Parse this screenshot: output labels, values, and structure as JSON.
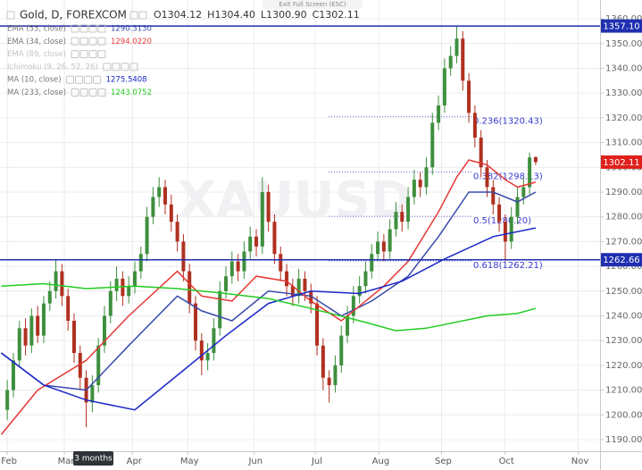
{
  "title": "Gold, D, FOREXCOM",
  "ohlc": [
    {
      "key": "O",
      "value": "1304.12"
    },
    {
      "key": "H",
      "value": "1304.40"
    },
    {
      "key": "L",
      "value": "1300.90"
    },
    {
      "key": "C",
      "value": "1302.11"
    }
  ],
  "tooltip": "Exit Full Screen (ESC)",
  "chart_data": {
    "type": "candlestick",
    "watermark": "XAUUSD",
    "range_label": "3 months",
    "up_color": "#3e8f3e",
    "down_color": "#b03020",
    "grid": true,
    "xlim": [
      -1.2,
      97.6
    ],
    "xticks": [
      {
        "value": 0,
        "label": "Feb"
      },
      {
        "value": 9.4,
        "label": "Mar"
      },
      {
        "value": 20.6,
        "label": "Apr"
      },
      {
        "value": 29.7,
        "label": "May"
      },
      {
        "value": 40.6,
        "label": "Jun"
      },
      {
        "value": 50.7,
        "label": "Jul"
      },
      {
        "value": 61.2,
        "label": "Aug"
      },
      {
        "value": 71.5,
        "label": "Sep"
      },
      {
        "value": 81.9,
        "label": "Oct"
      },
      {
        "value": 94,
        "label": "Nov"
      }
    ],
    "ylim": [
      1185.3,
      1367.6
    ],
    "yticks": [
      {
        "value": 1190,
        "label": "1190.00"
      },
      {
        "value": 1200,
        "label": "1200.00"
      },
      {
        "value": 1210,
        "label": "1210.00"
      },
      {
        "value": 1220,
        "label": "1220.00"
      },
      {
        "value": 1230,
        "label": "1230.00"
      },
      {
        "value": 1240,
        "label": "1240.00"
      },
      {
        "value": 1250,
        "label": "1250.00"
      },
      {
        "value": 1260,
        "label": "1260.00"
      },
      {
        "value": 1270,
        "label": "1270.00"
      },
      {
        "value": 1280,
        "label": "1280.00"
      },
      {
        "value": 1290,
        "label": "1290.00"
      },
      {
        "value": 1300,
        "label": "1300.00"
      },
      {
        "value": 1310,
        "label": "1310.00"
      },
      {
        "value": 1320,
        "label": "1320.00"
      },
      {
        "value": 1330,
        "label": "1330.00"
      },
      {
        "value": 1340,
        "label": "1340.00"
      },
      {
        "value": 1350,
        "label": "1350.00"
      },
      {
        "value": 1360,
        "label": "1360.00"
      }
    ],
    "candles": [
      [
        1202,
        1214,
        1198,
        1210
      ],
      [
        1210,
        1225,
        1207,
        1222
      ],
      [
        1222,
        1238,
        1219,
        1235
      ],
      [
        1235,
        1239,
        1224,
        1228
      ],
      [
        1228,
        1243,
        1225,
        1240
      ],
      [
        1240,
        1244,
        1229,
        1232
      ],
      [
        1232,
        1248,
        1229,
        1245
      ],
      [
        1245,
        1254,
        1242,
        1250
      ],
      [
        1250,
        1263,
        1247,
        1258
      ],
      [
        1258,
        1261,
        1244,
        1248
      ],
      [
        1248,
        1251,
        1234,
        1238
      ],
      [
        1238,
        1241,
        1221,
        1225
      ],
      [
        1225,
        1228,
        1210,
        1215
      ],
      [
        1215,
        1218,
        1195,
        1205
      ],
      [
        1205,
        1216,
        1201,
        1212
      ],
      [
        1212,
        1231,
        1209,
        1228
      ],
      [
        1228,
        1244,
        1225,
        1240
      ],
      [
        1240,
        1254,
        1237,
        1250
      ],
      [
        1250,
        1260,
        1246,
        1255
      ],
      [
        1255,
        1258,
        1244,
        1248
      ],
      [
        1248,
        1256,
        1245,
        1252
      ],
      [
        1252,
        1262,
        1249,
        1258
      ],
      [
        1258,
        1268,
        1255,
        1265
      ],
      [
        1265,
        1284,
        1262,
        1280
      ],
      [
        1280,
        1292,
        1277,
        1288
      ],
      [
        1288,
        1296,
        1284,
        1292
      ],
      [
        1292,
        1295,
        1281,
        1285
      ],
      [
        1285,
        1289,
        1274,
        1278
      ],
      [
        1278,
        1281,
        1266,
        1270
      ],
      [
        1270,
        1273,
        1254,
        1258
      ],
      [
        1258,
        1261,
        1241,
        1245
      ],
      [
        1245,
        1248,
        1226,
        1230
      ],
      [
        1230,
        1233,
        1216,
        1222
      ],
      [
        1222,
        1229,
        1218,
        1225
      ],
      [
        1225,
        1239,
        1222,
        1235
      ],
      [
        1235,
        1254,
        1232,
        1250
      ],
      [
        1250,
        1260,
        1247,
        1256
      ],
      [
        1256,
        1266,
        1253,
        1262
      ],
      [
        1262,
        1265,
        1254,
        1258
      ],
      [
        1258,
        1270,
        1255,
        1266
      ],
      [
        1266,
        1276,
        1263,
        1272
      ],
      [
        1272,
        1275,
        1264,
        1268
      ],
      [
        1268,
        1296,
        1265,
        1290
      ],
      [
        1290,
        1293,
        1274,
        1278
      ],
      [
        1278,
        1281,
        1261,
        1265
      ],
      [
        1265,
        1268,
        1254,
        1258
      ],
      [
        1258,
        1261,
        1248,
        1252
      ],
      [
        1252,
        1255,
        1244,
        1248
      ],
      [
        1248,
        1259,
        1245,
        1255
      ],
      [
        1255,
        1258,
        1246,
        1250
      ],
      [
        1250,
        1253,
        1241,
        1245
      ],
      [
        1245,
        1248,
        1224,
        1228
      ],
      [
        1228,
        1231,
        1210,
        1215
      ],
      [
        1215,
        1218,
        1205,
        1212
      ],
      [
        1212,
        1224,
        1209,
        1220
      ],
      [
        1220,
        1236,
        1217,
        1232
      ],
      [
        1232,
        1244,
        1229,
        1240
      ],
      [
        1240,
        1252,
        1237,
        1248
      ],
      [
        1248,
        1256,
        1245,
        1252
      ],
      [
        1252,
        1262,
        1249,
        1258
      ],
      [
        1258,
        1269,
        1255,
        1265
      ],
      [
        1265,
        1274,
        1262,
        1270
      ],
      [
        1270,
        1273,
        1262,
        1266
      ],
      [
        1266,
        1279,
        1263,
        1275
      ],
      [
        1275,
        1286,
        1272,
        1282
      ],
      [
        1282,
        1285,
        1274,
        1278
      ],
      [
        1278,
        1292,
        1275,
        1288
      ],
      [
        1288,
        1299,
        1285,
        1295
      ],
      [
        1295,
        1298,
        1288,
        1292
      ],
      [
        1292,
        1304,
        1289,
        1300
      ],
      [
        1300,
        1322,
        1297,
        1318
      ],
      [
        1318,
        1329,
        1315,
        1325
      ],
      [
        1325,
        1344,
        1322,
        1340
      ],
      [
        1340,
        1349,
        1337,
        1345
      ],
      [
        1345,
        1357,
        1342,
        1352
      ],
      [
        1352,
        1355,
        1331,
        1335
      ],
      [
        1335,
        1338,
        1318,
        1322
      ],
      [
        1322,
        1325,
        1308,
        1312
      ],
      [
        1312,
        1315,
        1296,
        1300
      ],
      [
        1300,
        1303,
        1288,
        1292
      ],
      [
        1292,
        1295,
        1281,
        1285
      ],
      [
        1285,
        1288,
        1274,
        1278
      ],
      [
        1278,
        1281,
        1262,
        1270
      ],
      [
        1270,
        1284,
        1267,
        1280
      ],
      [
        1280,
        1292,
        1277,
        1288
      ],
      [
        1288,
        1296,
        1285,
        1292
      ],
      [
        1292,
        1306,
        1289,
        1304
      ],
      [
        1304.12,
        1304.4,
        1300.9,
        1302.11
      ]
    ],
    "series": [
      {
        "name": "EMA (55, close)",
        "color": "#3949ab",
        "last_label": "1290.3130",
        "x": [
          -1,
          6,
          13,
          20,
          28,
          32,
          37,
          43,
          50,
          55,
          60,
          66,
          71,
          76,
          80,
          84,
          87
        ],
        "values": [
          1225,
          1212,
          1210,
          1228,
          1248,
          1242,
          1238,
          1250,
          1248,
          1240,
          1246,
          1256,
          1272,
          1290,
          1290,
          1286,
          1290
        ]
      },
      {
        "name": "EMA (34, close)",
        "color": "#e53935",
        "last_label": "1294.0220",
        "x": [
          -1,
          5,
          13,
          20,
          28,
          32,
          37,
          41,
          46,
          50,
          55,
          58,
          62,
          66,
          71,
          74,
          76,
          79,
          82,
          84,
          87
        ],
        "values": [
          1192,
          1210,
          1222,
          1240,
          1258,
          1248,
          1246,
          1256,
          1254,
          1246,
          1238,
          1244,
          1252,
          1262,
          1282,
          1296,
          1303,
          1301,
          1295,
          1292,
          1294
        ]
      },
      {
        "name": "MA (10, close)",
        "color": "#1a27c9",
        "last_label": "1275.5408",
        "x": [
          -1,
          6,
          13,
          21,
          28,
          36,
          43,
          50,
          58,
          65,
          72,
          80,
          87
        ],
        "values": [
          1225,
          1212,
          1206,
          1202,
          1216,
          1232,
          1245,
          1250,
          1249,
          1254,
          1263,
          1272,
          1275.5
        ]
      },
      {
        "name": "MA (233, close)",
        "color": "#22cc22",
        "last_label": "1243.0752",
        "x": [
          -1,
          6,
          13,
          21,
          28,
          36,
          43,
          50,
          58,
          64,
          69,
          73,
          79,
          84,
          87
        ],
        "values": [
          1252,
          1253,
          1251,
          1252,
          1251,
          1249,
          1247,
          1243,
          1238,
          1234,
          1235,
          1237,
          1240,
          1241,
          1243
        ]
      }
    ],
    "legend_hidden": [
      "EMA (89, close)",
      "Ichimoku (9, 26, 52, 26)"
    ],
    "price_tags": [
      {
        "value": 1357.1,
        "label": "1357.10",
        "color": "#1f2fb0",
        "line": true
      },
      {
        "value": 1302.11,
        "label": "1302.11",
        "color": "#e0201b",
        "line": false
      },
      {
        "value": 1262.66,
        "label": "1262.66",
        "color": "#1f2fb0",
        "line": true
      }
    ],
    "fib_levels": [
      {
        "value": 1320.43,
        "label": "0.236(1320.43)"
      },
      {
        "value": 1298.13,
        "label": "0.382(1298.13)"
      },
      {
        "value": 1280.2,
        "label": "0.5(1280.20)"
      },
      {
        "value": 1262.21,
        "label": "0.618(1262.21)"
      }
    ]
  }
}
